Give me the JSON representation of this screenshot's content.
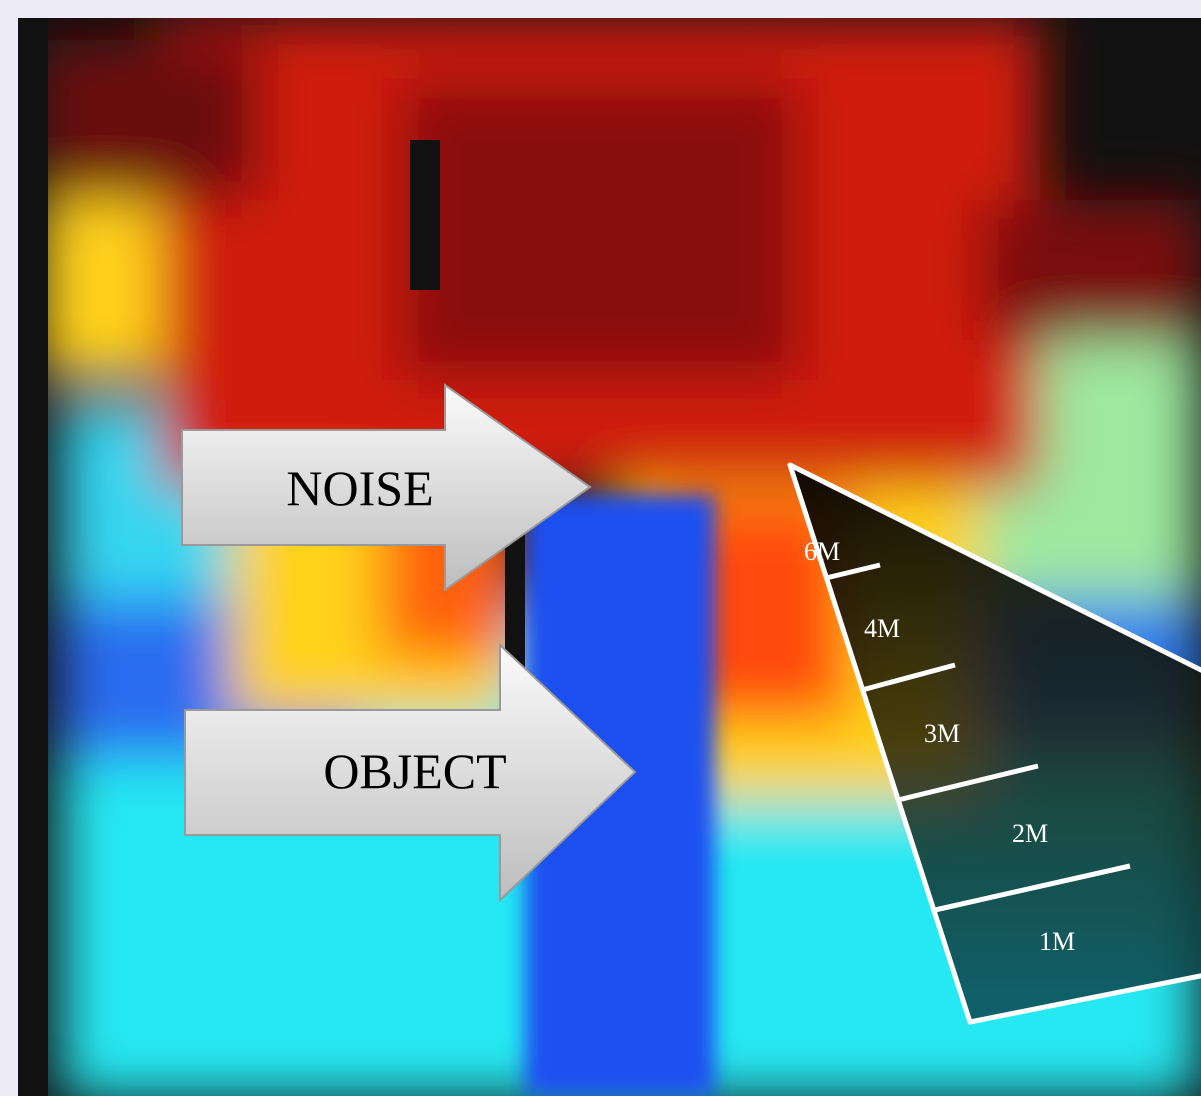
{
  "labels": {
    "noise": "NOISE",
    "object": "OBJECT"
  },
  "distance_scale": [
    "6M",
    "4M",
    "3M",
    "2M",
    "1M"
  ]
}
